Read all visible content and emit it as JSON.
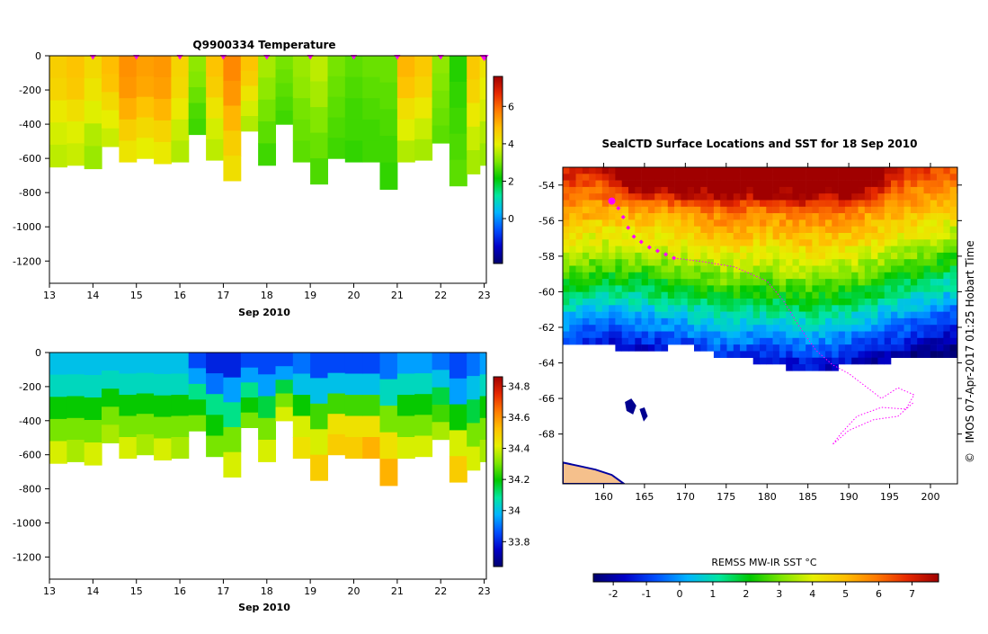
{
  "colors": {
    "stops_temperature": [
      "#00006e",
      "#0000c8",
      "#0050ff",
      "#00b4ff",
      "#00e6a0",
      "#00c800",
      "#7ee600",
      "#e6f000",
      "#ffc000",
      "#ff7a00",
      "#e62800",
      "#a00000"
    ],
    "land": "#f5c08c",
    "track": "#ff00ff",
    "nodata": "#ffffff"
  },
  "chart_data": [
    {
      "type": "heatmap",
      "title": "Q9900334  Temperature",
      "xlabel": "Sep 2010",
      "x_tick_labels": [
        "13",
        "14",
        "15",
        "16",
        "17",
        "18",
        "19",
        "20",
        "21",
        "22",
        "23"
      ],
      "x_ticks": [
        13,
        14,
        15,
        16,
        17,
        18,
        19,
        20,
        21,
        22,
        23
      ],
      "xlim": [
        13,
        23.05
      ],
      "y_tick_labels": [
        "0",
        "-200",
        "-400",
        "-600",
        "-800",
        "-1000",
        "-1200"
      ],
      "y_ticks": [
        0,
        -200,
        -400,
        -600,
        -800,
        -1000,
        -1200
      ],
      "ylim": [
        -1330,
        0
      ],
      "colorbar_ticks": [
        0,
        2,
        4,
        6
      ],
      "colorbar_labels": [
        "0",
        "2",
        "4",
        "6"
      ],
      "colorbar_range": [
        -2.4,
        7.6
      ],
      "profile_markers_x": [
        14,
        15,
        16,
        17,
        18,
        19,
        20,
        21,
        22,
        23
      ],
      "profiles": [
        {
          "x": 13.0,
          "depth": 650,
          "v": [
            4.6,
            4.5,
            4.1,
            3.8,
            3.6
          ]
        },
        {
          "x": 13.4,
          "depth": 640,
          "v": [
            4.8,
            4.7,
            4.3,
            3.9,
            3.7
          ]
        },
        {
          "x": 13.8,
          "depth": 660,
          "v": [
            4.4,
            4.2,
            3.9,
            3.5,
            3.3
          ]
        },
        {
          "x": 14.2,
          "depth": 530,
          "v": [
            4.9,
            4.8,
            4.4,
            4.0,
            3.7
          ]
        },
        {
          "x": 14.6,
          "depth": 620,
          "v": [
            5.5,
            5.4,
            5.1,
            4.6,
            4.2
          ]
        },
        {
          "x": 15.0,
          "depth": 600,
          "v": [
            5.3,
            5.2,
            4.8,
            4.4,
            4.0
          ]
        },
        {
          "x": 15.4,
          "depth": 630,
          "v": [
            5.4,
            5.3,
            5.0,
            4.5,
            4.1
          ]
        },
        {
          "x": 15.8,
          "depth": 620,
          "v": [
            4.5,
            4.4,
            4.1,
            3.7,
            3.5
          ]
        },
        {
          "x": 16.2,
          "depth": 460,
          "v": [
            3.2,
            3.1,
            2.9,
            2.7,
            2.6
          ]
        },
        {
          "x": 16.6,
          "depth": 610,
          "v": [
            4.8,
            4.6,
            4.2,
            3.8,
            3.6
          ]
        },
        {
          "x": 17.0,
          "depth": 730,
          "v": [
            5.6,
            5.4,
            5.0,
            4.6,
            4.3
          ]
        },
        {
          "x": 17.4,
          "depth": 440,
          "v": [
            4.8,
            4.6,
            4.2,
            3.8,
            3.5
          ]
        },
        {
          "x": 17.8,
          "depth": 640,
          "v": [
            3.4,
            3.2,
            3.0,
            2.8,
            2.6
          ]
        },
        {
          "x": 18.2,
          "depth": 400,
          "v": [
            3.0,
            2.9,
            2.8,
            2.7,
            2.6
          ]
        },
        {
          "x": 18.6,
          "depth": 620,
          "v": [
            3.3,
            3.2,
            3.0,
            2.9,
            2.8
          ]
        },
        {
          "x": 19.0,
          "depth": 750,
          "v": [
            3.6,
            3.4,
            3.1,
            2.9,
            2.7
          ]
        },
        {
          "x": 19.4,
          "depth": 600,
          "v": [
            3.0,
            2.9,
            2.8,
            2.7,
            2.6
          ]
        },
        {
          "x": 19.8,
          "depth": 620,
          "v": [
            2.8,
            2.7,
            2.6,
            2.6,
            2.5
          ]
        },
        {
          "x": 20.2,
          "depth": 620,
          "v": [
            2.9,
            2.8,
            2.7,
            2.6,
            2.6
          ]
        },
        {
          "x": 20.6,
          "depth": 780,
          "v": [
            2.9,
            2.8,
            2.7,
            2.6,
            2.5
          ]
        },
        {
          "x": 21.0,
          "depth": 620,
          "v": [
            5.0,
            4.8,
            4.3,
            3.9,
            3.5
          ]
        },
        {
          "x": 21.4,
          "depth": 610,
          "v": [
            4.7,
            4.5,
            4.1,
            3.7,
            3.4
          ]
        },
        {
          "x": 21.8,
          "depth": 510,
          "v": [
            3.2,
            3.1,
            3.0,
            2.9,
            2.8
          ]
        },
        {
          "x": 22.2,
          "depth": 760,
          "v": [
            2.4,
            2.5,
            2.6,
            2.7,
            2.8
          ]
        },
        {
          "x": 22.6,
          "depth": 690,
          "v": [
            4.7,
            4.5,
            4.1,
            3.7,
            3.4
          ]
        },
        {
          "x": 22.9,
          "depth": 640,
          "v": [
            4.2,
            4.0,
            3.8,
            3.5,
            3.3
          ]
        }
      ]
    },
    {
      "type": "heatmap",
      "title": "",
      "xlabel": "Sep 2010",
      "x_tick_labels": [
        "13",
        "14",
        "15",
        "16",
        "17",
        "18",
        "19",
        "20",
        "21",
        "22",
        "23"
      ],
      "x_ticks": [
        13,
        14,
        15,
        16,
        17,
        18,
        19,
        20,
        21,
        22,
        23
      ],
      "xlim": [
        13,
        23.05
      ],
      "y_tick_labels": [
        "0",
        "-200",
        "-400",
        "-600",
        "-800",
        "-1000",
        "-1200"
      ],
      "y_ticks": [
        0,
        -200,
        -400,
        -600,
        -800,
        -1000,
        -1200
      ],
      "ylim": [
        -1330,
        0
      ],
      "colorbar_ticks": [
        33.8,
        34,
        34.2,
        34.4,
        34.6,
        34.8
      ],
      "colorbar_labels": [
        "33.8",
        "34",
        "34.2",
        "34.4",
        "34.6",
        "34.8"
      ],
      "colorbar_range": [
        33.64,
        34.86
      ],
      "profiles": [
        {
          "x": 13.0,
          "depth": 650,
          "v": [
            34.0,
            34.05,
            34.2,
            34.3,
            34.4
          ]
        },
        {
          "x": 13.4,
          "depth": 640,
          "v": [
            34.0,
            34.05,
            34.2,
            34.3,
            34.35
          ]
        },
        {
          "x": 13.8,
          "depth": 660,
          "v": [
            34.0,
            34.05,
            34.2,
            34.3,
            34.4
          ]
        },
        {
          "x": 14.2,
          "depth": 530,
          "v": [
            34.0,
            34.05,
            34.2,
            34.3,
            34.35
          ]
        },
        {
          "x": 14.6,
          "depth": 620,
          "v": [
            34.0,
            34.05,
            34.2,
            34.3,
            34.4
          ]
        },
        {
          "x": 15.0,
          "depth": 600,
          "v": [
            34.0,
            34.05,
            34.2,
            34.3,
            34.35
          ]
        },
        {
          "x": 15.4,
          "depth": 630,
          "v": [
            34.0,
            34.05,
            34.2,
            34.3,
            34.4
          ]
        },
        {
          "x": 15.8,
          "depth": 620,
          "v": [
            34.0,
            34.05,
            34.2,
            34.3,
            34.35
          ]
        },
        {
          "x": 16.2,
          "depth": 460,
          "v": [
            33.85,
            33.95,
            34.1,
            34.2,
            34.3
          ]
        },
        {
          "x": 16.6,
          "depth": 610,
          "v": [
            33.8,
            33.9,
            34.1,
            34.2,
            34.3
          ]
        },
        {
          "x": 17.0,
          "depth": 730,
          "v": [
            33.8,
            33.95,
            34.1,
            34.3,
            34.4
          ]
        },
        {
          "x": 17.4,
          "depth": 440,
          "v": [
            33.85,
            33.95,
            34.1,
            34.2,
            34.3
          ]
        },
        {
          "x": 17.8,
          "depth": 640,
          "v": [
            33.85,
            33.95,
            34.15,
            34.3,
            34.4
          ]
        },
        {
          "x": 18.2,
          "depth": 400,
          "v": [
            33.85,
            33.95,
            34.15,
            34.3,
            34.4
          ]
        },
        {
          "x": 18.6,
          "depth": 620,
          "v": [
            33.9,
            34.0,
            34.2,
            34.4,
            34.45
          ]
        },
        {
          "x": 19.0,
          "depth": 750,
          "v": [
            33.85,
            34.0,
            34.25,
            34.4,
            34.5
          ]
        },
        {
          "x": 19.4,
          "depth": 600,
          "v": [
            33.85,
            34.0,
            34.25,
            34.45,
            34.5
          ]
        },
        {
          "x": 19.8,
          "depth": 620,
          "v": [
            33.85,
            34.0,
            34.25,
            34.45,
            34.5
          ]
        },
        {
          "x": 20.2,
          "depth": 620,
          "v": [
            33.85,
            34.0,
            34.25,
            34.45,
            34.55
          ]
        },
        {
          "x": 20.6,
          "depth": 780,
          "v": [
            33.9,
            34.05,
            34.3,
            34.45,
            34.55
          ]
        },
        {
          "x": 21.0,
          "depth": 620,
          "v": [
            33.95,
            34.05,
            34.2,
            34.3,
            34.4
          ]
        },
        {
          "x": 21.4,
          "depth": 610,
          "v": [
            33.95,
            34.05,
            34.2,
            34.3,
            34.4
          ]
        },
        {
          "x": 21.8,
          "depth": 510,
          "v": [
            33.9,
            34.0,
            34.15,
            34.25,
            34.35
          ]
        },
        {
          "x": 22.2,
          "depth": 760,
          "v": [
            33.85,
            33.95,
            34.2,
            34.4,
            34.5
          ]
        },
        {
          "x": 22.6,
          "depth": 690,
          "v": [
            33.9,
            34.0,
            34.15,
            34.3,
            34.4
          ]
        },
        {
          "x": 22.9,
          "depth": 640,
          "v": [
            33.95,
            34.05,
            34.2,
            34.3,
            34.35
          ]
        }
      ]
    },
    {
      "type": "heatmap",
      "title": "SealCTD Surface Locations and SST for 18 Sep 2010",
      "xlabel": "",
      "x_tick_labels": [
        "160",
        "165",
        "170",
        "175",
        "180",
        "185",
        "190",
        "195",
        "200"
      ],
      "x_ticks": [
        160,
        165,
        170,
        175,
        180,
        185,
        190,
        195,
        200
      ],
      "xlim": [
        155,
        203.3
      ],
      "y_tick_labels": [
        "-54",
        "-56",
        "-58",
        "-60",
        "-62",
        "-64",
        "-66",
        "-68"
      ],
      "y_ticks": [
        -54,
        -56,
        -58,
        -60,
        -62,
        -64,
        -66,
        -68
      ],
      "ylim": [
        -70.8,
        -53
      ],
      "colorbar_title": "REMSS MW-IR SST °C",
      "colorbar_ticks": [
        -2,
        -1,
        0,
        1,
        2,
        3,
        4,
        5,
        6,
        7
      ],
      "colorbar_labels": [
        "-2",
        "-1",
        "0",
        "1",
        "2",
        "3",
        "4",
        "5",
        "6",
        "7"
      ],
      "colorbar_range": [
        -2.6,
        7.8
      ],
      "sst_front_lat_by_lon": [
        {
          "lon": 155,
          "lat": -58.5
        },
        {
          "lon": 160,
          "lat": -58.0
        },
        {
          "lon": 165,
          "lat": -58.2
        },
        {
          "lon": 170,
          "lat": -58.6
        },
        {
          "lon": 175,
          "lat": -59.2
        },
        {
          "lon": 180,
          "lat": -59.0
        },
        {
          "lon": 185,
          "lat": -59.3
        },
        {
          "lon": 190,
          "lat": -59.0
        },
        {
          "lon": 195,
          "lat": -58.3
        },
        {
          "lon": 200,
          "lat": -57.6
        },
        {
          "lon": 203.3,
          "lat": -57.2
        }
      ],
      "ice_edge_lat_by_lon": [
        {
          "lon": 155,
          "lat": -63.0
        },
        {
          "lon": 160,
          "lat": -63.1
        },
        {
          "lon": 165,
          "lat": -63.3
        },
        {
          "lon": 170,
          "lat": -63.0
        },
        {
          "lon": 175,
          "lat": -63.7
        },
        {
          "lon": 180,
          "lat": -64.0
        },
        {
          "lon": 185,
          "lat": -64.5
        },
        {
          "lon": 190,
          "lat": -64.2
        },
        {
          "lon": 195,
          "lat": -63.9
        },
        {
          "lon": 200,
          "lat": -63.7
        },
        {
          "lon": 203.3,
          "lat": -63.6
        }
      ],
      "warm_core": [
        {
          "lon": 165,
          "lat": -54.0
        },
        {
          "lon": 170,
          "lat": -54.2
        },
        {
          "lon": 175,
          "lat": -54.7
        },
        {
          "lon": 180,
          "lat": -55.0
        },
        {
          "lon": 185,
          "lat": -54.6
        },
        {
          "lon": 190,
          "lat": -54.8
        }
      ],
      "track_positions": [
        {
          "lon": 161.0,
          "lat": -54.9
        },
        {
          "lon": 161.8,
          "lat": -55.3
        },
        {
          "lon": 162.4,
          "lat": -55.8
        },
        {
          "lon": 163.0,
          "lat": -56.4
        },
        {
          "lon": 163.7,
          "lat": -56.9
        },
        {
          "lon": 164.6,
          "lat": -57.2
        },
        {
          "lon": 165.6,
          "lat": -57.5
        },
        {
          "lon": 166.6,
          "lat": -57.7
        },
        {
          "lon": 167.6,
          "lat": -57.9
        },
        {
          "lon": 168.6,
          "lat": -58.1
        }
      ],
      "current_position": {
        "lon": 161.0,
        "lat": -54.9
      },
      "trail": [
        {
          "lon": 168.6,
          "lat": -58.1
        },
        {
          "lon": 172,
          "lat": -58.3
        },
        {
          "lon": 176,
          "lat": -58.6
        },
        {
          "lon": 180,
          "lat": -59.4
        },
        {
          "lon": 182,
          "lat": -60.5
        },
        {
          "lon": 184,
          "lat": -62.0
        },
        {
          "lon": 186,
          "lat": -63.3
        },
        {
          "lon": 188,
          "lat": -64.1
        },
        {
          "lon": 190,
          "lat": -64.6
        },
        {
          "lon": 192,
          "lat": -65.3
        },
        {
          "lon": 194,
          "lat": -66.0
        },
        {
          "lon": 196,
          "lat": -65.4
        },
        {
          "lon": 198,
          "lat": -65.8
        },
        {
          "lon": 197,
          "lat": -66.6
        },
        {
          "lon": 194,
          "lat": -66.5
        },
        {
          "lon": 191,
          "lat": -67.0
        },
        {
          "lon": 189,
          "lat": -68.0
        },
        {
          "lon": 188,
          "lat": -68.6
        },
        {
          "lon": 190,
          "lat": -67.8
        },
        {
          "lon": 193,
          "lat": -67.2
        },
        {
          "lon": 196,
          "lat": -67.0
        },
        {
          "lon": 198,
          "lat": -66.2
        }
      ],
      "islands": [
        [
          {
            "lon": 162.6,
            "lat": -66.2
          },
          {
            "lon": 163.4,
            "lat": -66.0
          },
          {
            "lon": 164.0,
            "lat": -66.4
          },
          {
            "lon": 163.6,
            "lat": -66.9
          },
          {
            "lon": 162.8,
            "lat": -66.7
          }
        ],
        [
          {
            "lon": 164.4,
            "lat": -66.6
          },
          {
            "lon": 165.0,
            "lat": -66.5
          },
          {
            "lon": 165.4,
            "lat": -67.0
          },
          {
            "lon": 164.9,
            "lat": -67.3
          }
        ]
      ],
      "coast": [
        {
          "lon": 155,
          "lat": -69.6
        },
        {
          "lon": 157,
          "lat": -69.8
        },
        {
          "lon": 159,
          "lat": -70.0
        },
        {
          "lon": 161,
          "lat": -70.3
        },
        {
          "lon": 162.5,
          "lat": -70.8
        }
      ]
    }
  ],
  "credit": "IMOS 07-Apr-2017 01:25 Hobart Time",
  "copyright_symbol": "©"
}
